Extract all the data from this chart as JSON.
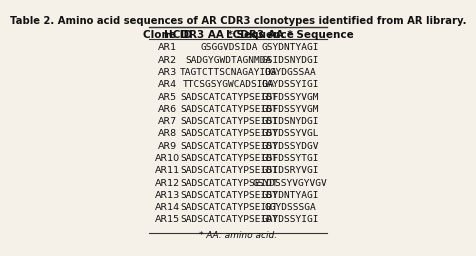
{
  "title": "Table 2. Amino acid sequences of AR CDR3 clonotypes identified from AR library.",
  "col_headers": [
    "Clone ID",
    "HCDR3 AA * Sequence",
    "LCDR3 AA * Sequence"
  ],
  "rows": [
    [
      "AR1",
      "GSGGVDSIDA",
      "GSYDNTYAGI"
    ],
    [
      "AR2",
      "SADGYGWDTAGNMDA",
      "GSIDSNYDGI"
    ],
    [
      "AR3",
      "TAGTCTTSCNAGAYIDA",
      "GGYDGSSAA"
    ],
    [
      "AR4",
      "TTCSGSYGWCADSIDA",
      "GAYDSSYIGI"
    ],
    [
      "AR5",
      "SADSCATCATYPSEIDT",
      "GSFDSSYVGM"
    ],
    [
      "AR6",
      "SADSCATCATYPSEIDT",
      "GSFDSSYVGM"
    ],
    [
      "AR7",
      "SADSCATCATYPSEIDT",
      "GSIDSNYDGI"
    ],
    [
      "AR8",
      "SADSCATCATYPSEIDT",
      "GSYDSSYVGL"
    ],
    [
      "AR9",
      "SADSCATCATYPSEIDT",
      "GSYDSSYDGV"
    ],
    [
      "AR10",
      "SADSCATCATYPSEIDT",
      "GSFDSSYTGI"
    ],
    [
      "AR11",
      "SADSCATCATYPSEIDT",
      "GSIDSRYVGI"
    ],
    [
      "AR12",
      "SADSCATCATYPSEIDT",
      "GSYDSSYVGYVGV"
    ],
    [
      "AR13",
      "SADSCATCATYPSEIDT",
      "GSYDNTYAGI"
    ],
    [
      "AR14",
      "SADSCATCATYPSEIDT",
      "GGYDSSSGA"
    ],
    [
      "AR15",
      "SADSCATCATYPSEIDT",
      "GAYDSSYIGI"
    ]
  ],
  "footnote": "* AA: amino acid.",
  "bg_color": "#f5f0e8",
  "header_line_color": "#333333",
  "text_color": "#111111",
  "title_fontsize": 7.2,
  "header_fontsize": 7.5,
  "cell_fontsize": 6.8,
  "footnote_fontsize": 6.5
}
